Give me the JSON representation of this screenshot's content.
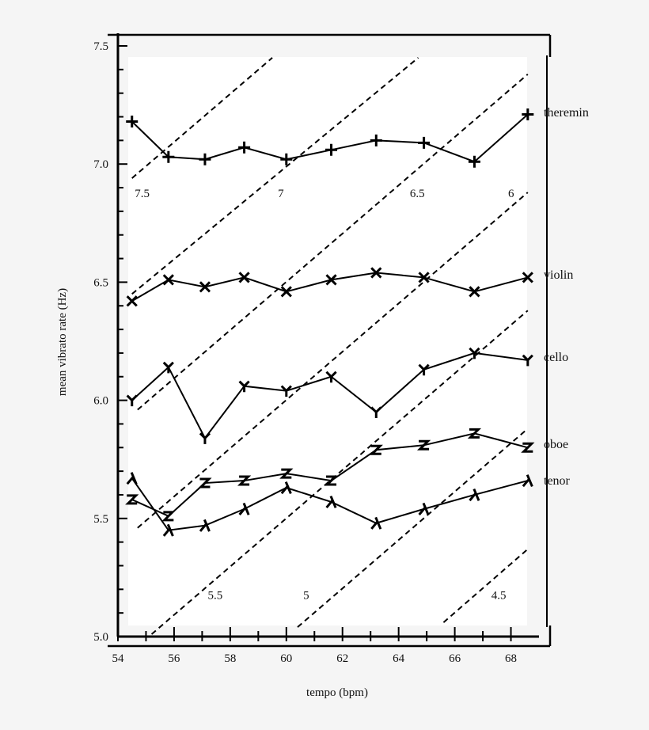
{
  "chart_data": {
    "type": "line",
    "xlabel": "tempo (bpm)",
    "ylabel": "mean vibrato  rate (Hz)",
    "xlim": [
      54,
      69
    ],
    "ylim": [
      5.0,
      7.5
    ],
    "x_ticks": [
      "54",
      "56",
      "58",
      "60",
      "62",
      "64",
      "66",
      "68"
    ],
    "y_ticks": [
      "5.0",
      "5.5",
      "6.0",
      "6.5",
      "7.0",
      "7.5"
    ],
    "x_tick_values": [
      54,
      56,
      58,
      60,
      62,
      64,
      66,
      68
    ],
    "y_tick_values": [
      5.0,
      5.5,
      6.0,
      6.5,
      7.0,
      7.5
    ],
    "grid": false,
    "legend": "series labels at right end of lines",
    "x": [
      54.5,
      55.8,
      57.1,
      58.5,
      60.0,
      61.6,
      63.2,
      64.9,
      66.7,
      68.6
    ],
    "series": [
      {
        "name": "theremin",
        "marker": "+",
        "values": [
          7.18,
          7.03,
          7.02,
          7.07,
          7.02,
          7.06,
          7.1,
          7.09,
          7.01,
          7.21
        ]
      },
      {
        "name": "violin",
        "marker": "x",
        "values": [
          6.42,
          6.51,
          6.48,
          6.52,
          6.46,
          6.51,
          6.54,
          6.52,
          6.46,
          6.52
        ]
      },
      {
        "name": "cello",
        "marker": "Y",
        "values": [
          6.0,
          6.14,
          5.84,
          6.06,
          6.04,
          6.1,
          5.95,
          6.13,
          6.2,
          6.17
        ]
      },
      {
        "name": "oboe",
        "marker": "Z",
        "values": [
          5.58,
          5.51,
          5.65,
          5.66,
          5.69,
          5.66,
          5.79,
          5.81,
          5.86,
          5.8
        ]
      },
      {
        "name": "tenor",
        "marker": "λ",
        "values": [
          5.67,
          5.45,
          5.47,
          5.54,
          5.63,
          5.57,
          5.48,
          5.54,
          5.6,
          5.66
        ]
      }
    ],
    "reference_lines": {
      "style": "dashed",
      "description": "constant vibrato cycles per beat",
      "lines": [
        {
          "label": "7.5",
          "x": [
            54.5,
            59.5
          ],
          "y": [
            6.94,
            7.45
          ]
        },
        {
          "label": "7",
          "x": [
            54.5,
            64.7
          ],
          "y": [
            6.45,
            7.45
          ]
        },
        {
          "label": "6.5",
          "x": [
            54.7,
            68.6
          ],
          "y": [
            5.96,
            7.38
          ]
        },
        {
          "label": "6",
          "x": [
            54.7,
            68.6
          ],
          "y": [
            5.46,
            6.88
          ]
        },
        {
          "label": "5.5",
          "x": [
            55.2,
            68.6
          ],
          "y": [
            5.01,
            6.38
          ]
        },
        {
          "label": "5",
          "x": [
            60.4,
            68.6
          ],
          "y": [
            5.04,
            5.88
          ]
        },
        {
          "label": "4.5",
          "x": [
            65.6,
            68.6
          ],
          "y": [
            5.06,
            5.37
          ]
        }
      ],
      "label_positions": {
        "7.5": [
          54.6,
          6.86
        ],
        "7": [
          59.7,
          6.86
        ],
        "6.5": [
          64.4,
          6.86
        ],
        "6": [
          67.9,
          6.86
        ],
        "5.5": [
          57.2,
          5.16
        ],
        "5": [
          60.6,
          5.16
        ],
        "4.5": [
          67.3,
          5.16
        ]
      }
    }
  }
}
